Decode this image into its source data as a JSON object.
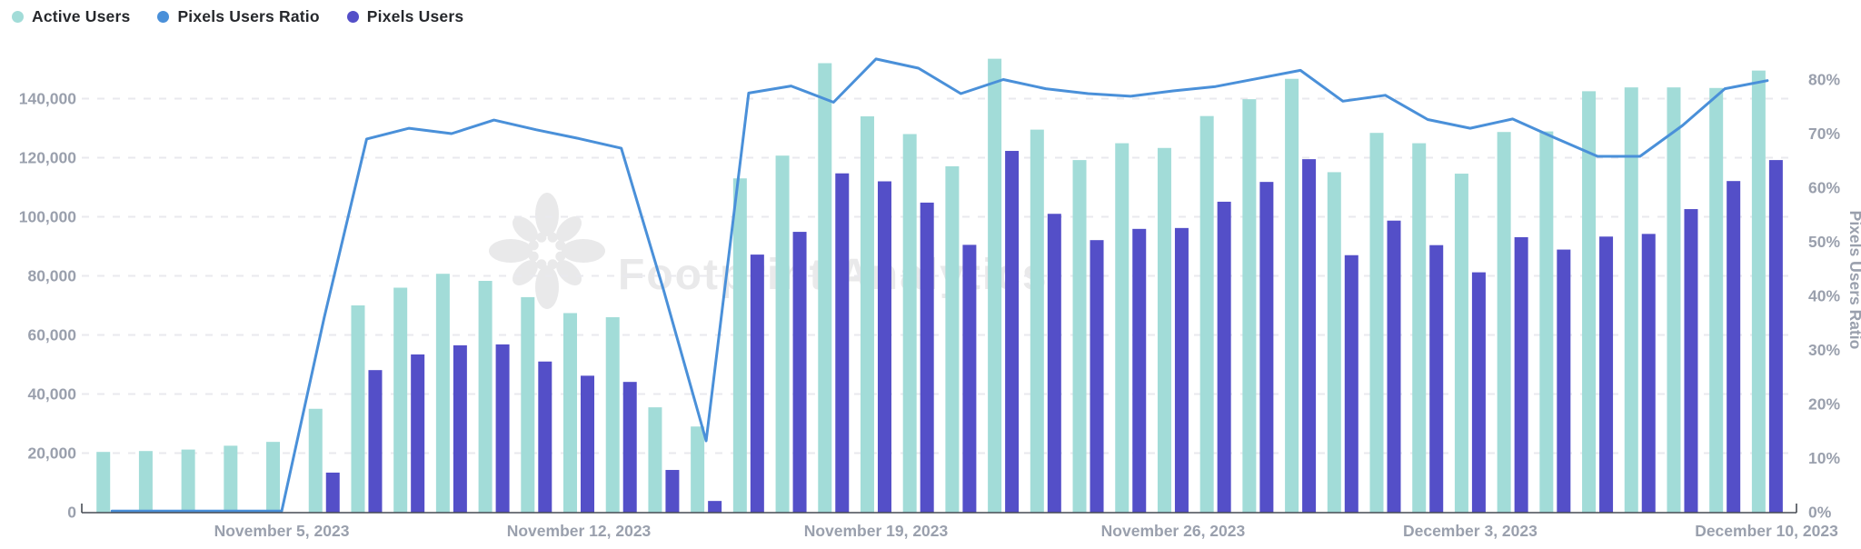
{
  "legend": [
    {
      "label": "Active Users",
      "color": "#a2dcd8",
      "marker": "circle"
    },
    {
      "label": "Pixels Users Ratio",
      "color": "#4a90d9",
      "marker": "circle"
    },
    {
      "label": "Pixels Users",
      "color": "#544fc8",
      "marker": "circle"
    }
  ],
  "watermark": {
    "text": "Footprint Analytics",
    "logo": "flower-icon"
  },
  "colors": {
    "active_users_bar": "#a2dcd8",
    "pixels_users_bar": "#544fc8",
    "ratio_line": "#4a90d9",
    "axis_line": "#474c54",
    "axis_text": "#9aa0ad",
    "gridline": "#e9e9ee",
    "watermark": "#e9e9ea"
  },
  "chart_data": {
    "type": "combo",
    "subtypes": {
      "Active Users": "bar",
      "Pixels Users": "bar",
      "Pixels Users Ratio": "line"
    },
    "x": [
      "2023-11-01",
      "2023-11-02",
      "2023-11-03",
      "2023-11-04",
      "2023-11-05",
      "2023-11-06",
      "2023-11-07",
      "2023-11-08",
      "2023-11-09",
      "2023-11-10",
      "2023-11-11",
      "2023-11-12",
      "2023-11-13",
      "2023-11-14",
      "2023-11-15",
      "2023-11-16",
      "2023-11-17",
      "2023-11-18",
      "2023-11-19",
      "2023-11-20",
      "2023-11-21",
      "2023-11-22",
      "2023-11-23",
      "2023-11-24",
      "2023-11-25",
      "2023-11-26",
      "2023-11-27",
      "2023-11-28",
      "2023-11-29",
      "2023-11-30",
      "2023-12-01",
      "2023-12-02",
      "2023-12-03",
      "2023-12-04",
      "2023-12-05",
      "2023-12-06",
      "2023-12-07",
      "2023-12-08",
      "2023-12-09",
      "2023-12-10"
    ],
    "series": [
      {
        "name": "Active Users",
        "type": "bar",
        "axis": "left",
        "color": "#a2dcd8",
        "values": [
          20400,
          20700,
          21200,
          22500,
          23800,
          35000,
          70000,
          76000,
          80700,
          78300,
          72800,
          67400,
          66000,
          35500,
          29000,
          113000,
          120700,
          152000,
          134000,
          128000,
          117100,
          153500,
          129500,
          119200,
          124900,
          123300,
          134100,
          139800,
          146700,
          115100,
          128400,
          124900,
          114600,
          128700,
          128900,
          142500,
          143800,
          143800,
          143600,
          149500
        ]
      },
      {
        "name": "Pixels Users",
        "type": "bar",
        "axis": "left",
        "color": "#544fc8",
        "values": [
          0,
          0,
          0,
          0,
          0,
          13400,
          48100,
          53400,
          56500,
          56800,
          51000,
          46200,
          44100,
          14300,
          3800,
          87200,
          94900,
          114700,
          112000,
          104800,
          90500,
          122300,
          101000,
          92100,
          95900,
          96200,
          105100,
          111800,
          119500,
          87000,
          98700,
          90400,
          81200,
          93100,
          88900,
          93300,
          94200,
          102600,
          112100,
          119200
        ]
      },
      {
        "name": "Pixels Users Ratio",
        "type": "line",
        "axis": "right",
        "unit": "%",
        "color": "#4a90d9",
        "values": [
          0.2,
          0.2,
          0.2,
          0.2,
          0.2,
          36,
          69,
          71,
          70,
          72.5,
          70.7,
          69.1,
          67.3,
          41,
          13.2,
          77.5,
          78.8,
          75.8,
          83.8,
          82.1,
          77.4,
          80,
          78.3,
          77.4,
          76.9,
          77.9,
          78.7,
          80.2,
          81.7,
          76,
          77.1,
          72.6,
          71,
          72.7,
          69.2,
          65.8,
          65.8,
          71.5,
          78.3,
          79.8
        ]
      }
    ],
    "x_axis": {
      "tick_indices": [
        4,
        11,
        18,
        25,
        32,
        39
      ],
      "tick_labels": [
        "November 5, 2023",
        "November 12, 2023",
        "November 19, 2023",
        "November 26, 2023",
        "December 3, 2023",
        "December 10, 2023"
      ]
    },
    "y_axis_left": {
      "min": 0,
      "max": 160000,
      "step": 20000,
      "tick_labels": [
        "0",
        "20,000",
        "40,000",
        "60,000",
        "80,000",
        "100,000",
        "120,000",
        "140,000"
      ],
      "gridlines": true
    },
    "y_axis_right": {
      "min": 0,
      "max": 90,
      "step": 10,
      "title": "Pixels Users Ratio",
      "tick_labels": [
        "0%",
        "10%",
        "20%",
        "30%",
        "40%",
        "50%",
        "60%",
        "70%",
        "80%"
      ]
    },
    "legend_position": "top-left",
    "title": "",
    "xlabel": "",
    "ylabel_left": "",
    "ylabel_right": "Pixels Users Ratio"
  }
}
